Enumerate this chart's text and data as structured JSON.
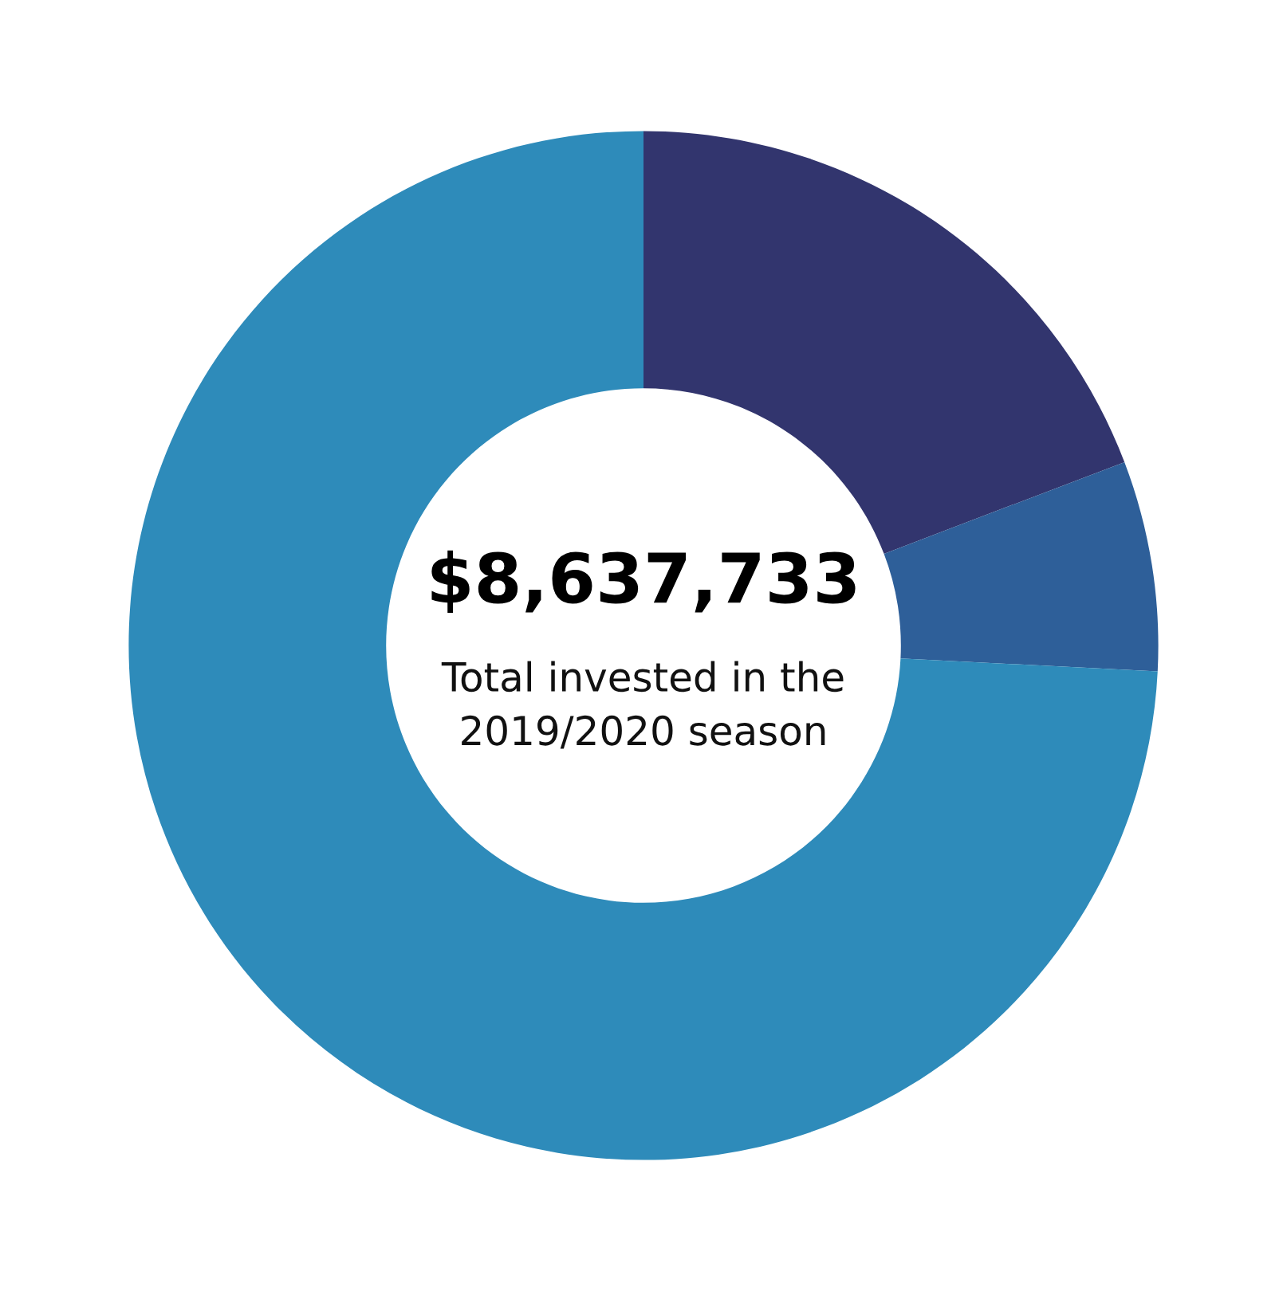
{
  "chart_data": {
    "type": "donut",
    "title": "$8,637,733",
    "subtitle": "Total invested in the\n2019/2020 season",
    "categories": [
      null,
      null,
      null
    ],
    "values": [
      19.2,
      6.6,
      74.2
    ],
    "colors": [
      "#32356e",
      "#2e5f99",
      "#2e8bba"
    ]
  }
}
